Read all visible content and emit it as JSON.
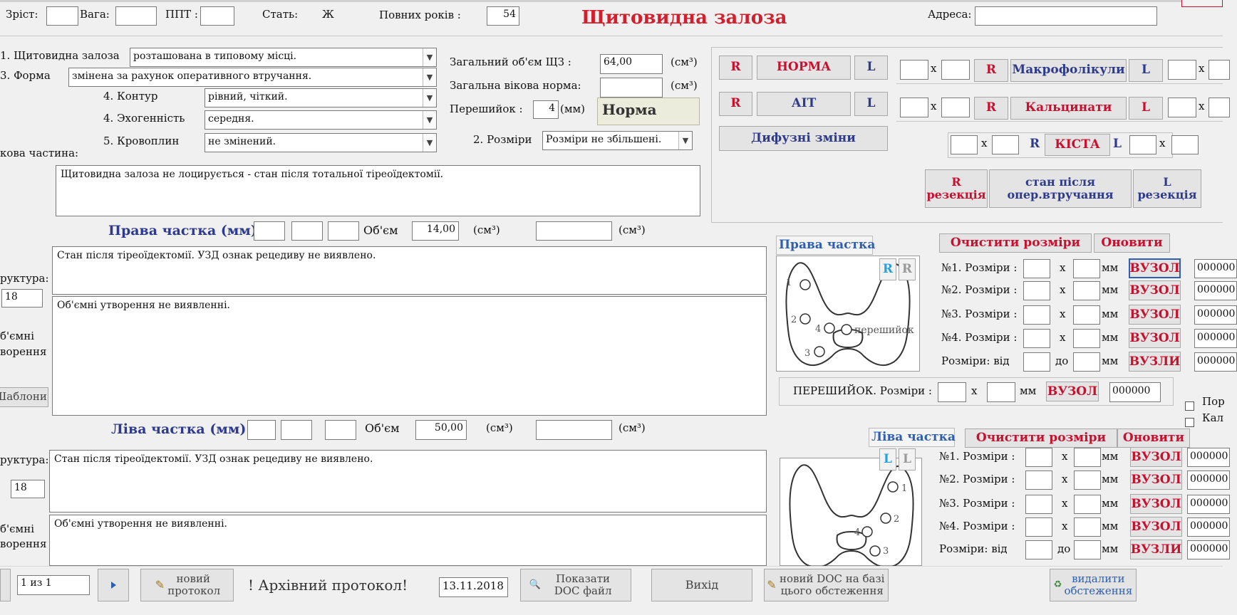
{
  "header": {
    "height_label": "Зріст:",
    "weight_label": "Вага:",
    "bsa_label": "ППТ :",
    "sex_label": "Стать:",
    "sex_value": "Ж",
    "age_label": "Повних років :",
    "age_value": "54",
    "title": "Щитовидна  залоза",
    "address_label": "Адреса:"
  },
  "general": {
    "location_label": "1. Щитовидна залоза",
    "location_value": "розташована в типовому місці.",
    "form_label": "3. Форма",
    "form_value": "змінена за рахунок оперативного втручання.",
    "contour_label": "4. Контур",
    "contour_value": "рівний, чіткий.",
    "echo_label": "4. Эхогенність",
    "echo_value": "середня.",
    "blood_label": "5. Кровоплин",
    "blood_value": "не змінений.",
    "isthmus_part_label": "кова частина:",
    "total_volume_label": "Загальний   об'єм  ЩЗ :",
    "total_volume_value": "64,00",
    "unit_cm3": "(см³)",
    "age_norm_label": "Загальна вікова норма:",
    "isthmus_label": "Перешийок :",
    "isthmus_value": "4",
    "unit_mm": "(мм)",
    "norm_result": "Норма",
    "sizes_label": "2. Розміри",
    "sizes_value": "Розміри не збільшені.",
    "conclusion_text": "Щитовидна залоза не лоцирується -  стан після тотальної тіреоїдектомії."
  },
  "right_panel": {
    "r": "R",
    "l": "L",
    "norm": "НОРМА",
    "ait": "АІТ",
    "diffuse": "Дифузні зміни",
    "macro": "Макрофолікули",
    "calc": "Кальцинати",
    "cyst": "КІСТА",
    "x": "x",
    "r_resection": "R резекція",
    "post_op": "стан  після опер.втручання",
    "l_resection": "L резекція"
  },
  "right_lobe": {
    "title": "Права частка (мм)",
    "volume_label": "Об'єм",
    "volume_value": "14,00",
    "structure_label": "руктура:",
    "structure_value": "18",
    "masses_label_1": "б'ємні",
    "masses_label_2": "ворення",
    "templates_button": "Шаблони",
    "text_1": "Стан після тіреоїдектомії. УЗД ознак рецедиву не виявлено.",
    "text_2": "Об'ємні утворення не виявленні."
  },
  "left_lobe": {
    "title": "Ліва частка (мм)",
    "volume_label": "Об'єм",
    "volume_value": "50,00",
    "structure_label": "руктура:",
    "structure_value": "18",
    "masses_label_1": "б'ємні",
    "masses_label_2": "ворення",
    "text_1": "Стан після тіреоїдектомії. УЗД ознак рецедиву не виявлено.",
    "text_2": "Об'ємні утворення не виявленні."
  },
  "nodes_right": {
    "tab": "Права частка",
    "clear": "Очистити розміри",
    "update": "Оновити",
    "r_active": "R",
    "r_inactive": "R",
    "isthmus_text": "перешийок",
    "rows": [
      {
        "label": "№1. Розміри :",
        "unit": "мм",
        "button": "ВУЗОЛ",
        "code": "000000"
      },
      {
        "label": "№2. Розміри :",
        "unit": "мм",
        "button": "ВУЗОЛ",
        "code": "000000"
      },
      {
        "label": "№3. Розміри :",
        "unit": "мм",
        "button": "ВУЗОЛ",
        "code": "000000"
      },
      {
        "label": "№4. Розміри :",
        "unit": "мм",
        "button": "ВУЗОЛ",
        "code": "000000"
      },
      {
        "label": "Розміри: від",
        "mid": "до",
        "unit": "мм",
        "button": "ВУЗЛИ",
        "code": "000000"
      }
    ],
    "x": "x",
    "markers": [
      "1",
      "2",
      "3",
      "4"
    ]
  },
  "isthmus_node": {
    "label": "ПЕРЕШИЙОК. Розміри :",
    "x": "x",
    "unit": "мм",
    "button": "ВУЗОЛ",
    "code": "000000"
  },
  "side_checks": {
    "a": "Пор",
    "b": "Кал"
  },
  "nodes_left": {
    "tab": "Ліва частка",
    "clear": "Очистити розміри",
    "update": "Оновити",
    "l_active": "L",
    "l_inactive": "L",
    "rows": [
      {
        "label": "№1. Розміри :",
        "unit": "мм",
        "button": "ВУЗОЛ",
        "code": "000000"
      },
      {
        "label": "№2. Розміри :",
        "unit": "мм",
        "button": "ВУЗОЛ",
        "code": "000000"
      },
      {
        "label": "№3. Розміри :",
        "unit": "мм",
        "button": "ВУЗОЛ",
        "code": "000000"
      },
      {
        "label": "№4. Розміри :",
        "unit": "мм",
        "button": "ВУЗОЛ",
        "code": "000000"
      },
      {
        "label": "Розміри: від",
        "mid": "до",
        "unit": "мм",
        "button": "ВУЗЛИ",
        "code": "000000"
      }
    ],
    "x": "x",
    "markers": [
      "1",
      "2",
      "3",
      "4"
    ]
  },
  "footer": {
    "record": "1 из 1",
    "new_protocol": "новий протокол",
    "archive": "! Архівний протокол!",
    "date": "13.11.2018",
    "show_doc": "Показати DOC файл",
    "exit": "Вихід",
    "new_doc": "новий DOC на базі цього обстеження",
    "delete": "видалити обстеження"
  }
}
